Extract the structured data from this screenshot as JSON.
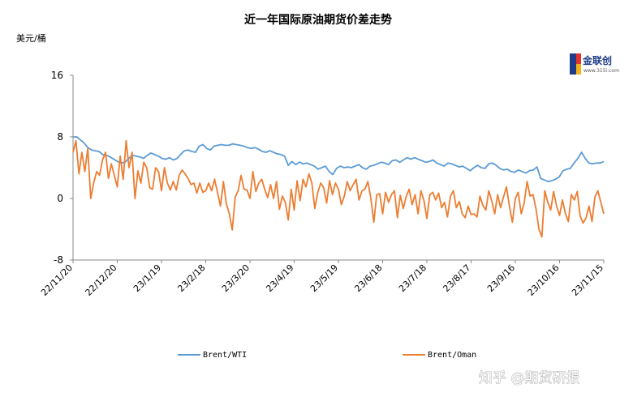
{
  "watermark": "知乎 @期货研报",
  "logo": {
    "name": "金联创",
    "url": "www.315i.com",
    "colors": [
      "#1f3c88",
      "#e63329",
      "#f2b319"
    ]
  },
  "chart_data": {
    "type": "line",
    "title": "近一年国际原油期货价差走势",
    "ylabel": "美元/桶",
    "ylim": [
      -8,
      16
    ],
    "yticks": [
      "16",
      "8",
      "0",
      "-8"
    ],
    "xticks": [
      "22/11/20",
      "22/12/20",
      "23/1/19",
      "23/2/18",
      "23/3/20",
      "23/4/19",
      "23/5/19",
      "23/6/18",
      "23/7/18",
      "23/8/17",
      "23/9/16",
      "23/10/16",
      "23/11/15"
    ],
    "legend_position": "bottom",
    "series": [
      {
        "name": "Brent/WTI",
        "color": "#5b9bd5",
        "values": [
          8.0,
          8.0,
          7.6,
          7.2,
          6.6,
          6.3,
          6.2,
          6.1,
          5.7,
          5.6,
          5.4,
          5.1,
          4.8,
          4.6,
          4.7,
          5.2,
          5.6,
          5.5,
          5.4,
          5.2,
          5.6,
          5.9,
          5.7,
          5.5,
          5.2,
          5.1,
          5.3,
          5.0,
          5.2,
          5.7,
          6.2,
          6.3,
          6.1,
          6.0,
          6.8,
          7.0,
          6.5,
          6.3,
          6.8,
          6.9,
          7.0,
          6.9,
          6.9,
          7.1,
          7.0,
          6.9,
          6.8,
          6.6,
          6.5,
          6.6,
          6.4,
          6.1,
          6.0,
          6.2,
          6.0,
          5.8,
          5.7,
          5.5,
          4.3,
          4.8,
          4.4,
          4.7,
          4.5,
          4.6,
          4.4,
          4.2,
          3.8,
          4.0,
          4.2,
          3.5,
          3.1,
          3.9,
          4.2,
          4.0,
          4.1,
          4.0,
          4.2,
          4.4,
          4.0,
          3.8,
          4.2,
          4.3,
          4.5,
          4.7,
          4.6,
          4.4,
          4.9,
          5.0,
          4.7,
          5.0,
          5.3,
          5.1,
          5.3,
          5.1,
          4.9,
          4.7,
          4.8,
          5.0,
          4.6,
          4.4,
          4.2,
          4.6,
          4.5,
          4.3,
          4.1,
          4.2,
          3.9,
          3.6,
          4.0,
          4.3,
          4.0,
          3.9,
          4.5,
          4.6,
          4.3,
          3.9,
          3.7,
          3.8,
          3.5,
          3.4,
          3.7,
          3.5,
          3.3,
          3.6,
          3.7,
          4.1,
          2.6,
          2.4,
          2.2,
          2.3,
          2.5,
          2.8,
          3.6,
          3.8,
          3.9,
          4.6,
          5.2,
          6.0,
          5.2,
          4.6,
          4.5,
          4.6,
          4.6,
          4.8
        ]
      },
      {
        "name": "Brent/Oman",
        "color": "#ed7d31",
        "values": [
          6.0,
          7.5,
          3.2,
          6.0,
          3.5,
          6.5,
          0.0,
          2.0,
          3.5,
          3.0,
          5.0,
          6.0,
          2.6,
          4.5,
          3.0,
          1.5,
          5.5,
          2.5,
          7.5,
          4.0,
          6.0,
          0.0,
          3.6,
          2.0,
          4.7,
          4.0,
          1.4,
          1.2,
          4.0,
          3.5,
          1.0,
          4.0,
          2.0,
          1.1,
          2.2,
          1.1,
          3.0,
          3.7,
          3.2,
          2.6,
          1.8,
          2.0,
          0.7,
          2.0,
          0.8,
          1.0,
          2.0,
          1.0,
          2.5,
          0.8,
          -1.0,
          2.2,
          -0.7,
          -2.0,
          -4.1,
          0.2,
          1.0,
          3.0,
          1.2,
          1.1,
          0.0,
          3.5,
          0.9,
          2.0,
          2.5,
          1.2,
          0.1,
          1.8,
          0.0,
          2.2,
          -1.4,
          0.3,
          -0.5,
          -2.8,
          1.2,
          -1.5,
          2.3,
          -0.3,
          2.5,
          1.5,
          3.2,
          2.0,
          -1.3,
          0.8,
          2.0,
          1.4,
          -0.6,
          2.3,
          0.5,
          2.0,
          1.2,
          -0.8,
          0.3,
          2.2,
          1.0,
          1.8,
          2.5,
          -0.2,
          1.0,
          1.2,
          2.2,
          0.0,
          -3.1,
          0.5,
          0.6,
          -2.0,
          0.8,
          -0.5,
          0.5,
          1.0,
          -2.5,
          0.4,
          -1.3,
          0.3,
          1.2,
          -0.8,
          0.5,
          -2.0,
          1.0,
          -0.3,
          -2.6,
          0.5,
          0.8,
          -0.2,
          0.7,
          -1.2,
          -0.5,
          -2.4,
          0.3,
          1.0,
          -1.2,
          -0.4,
          -2.0,
          -2.5,
          -1.0,
          -2.1,
          -2.0,
          -2.4,
          0.3,
          -0.9,
          -1.5,
          1.0,
          -0.3,
          -2.0,
          0.5,
          -1.2,
          0.2,
          1.5,
          -1.0,
          -3.1,
          0.0,
          0.8,
          -2.0,
          -0.6,
          2.2,
          0.3,
          0.5,
          -1.3,
          -4.0,
          -5.0,
          1.0,
          -0.5,
          -1.5,
          0.9,
          -1.0,
          -2.2,
          -0.2,
          -2.0,
          -3.0,
          0.5,
          -0.2,
          0.9,
          -2.3,
          -3.2,
          -2.5,
          -1.0,
          -3.0,
          0.2,
          1.0,
          -0.5,
          -2.0
        ]
      }
    ]
  }
}
